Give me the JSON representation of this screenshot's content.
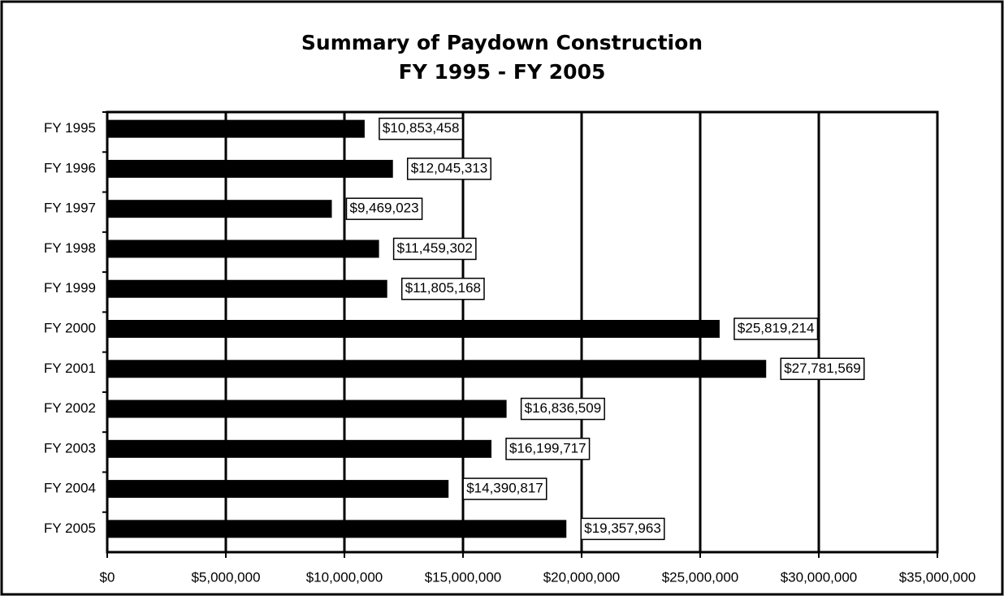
{
  "chart_data": {
    "type": "bar",
    "orientation": "horizontal",
    "title": "Summary of Paydown Construction",
    "subtitle": "FY 1995 - FY 2005",
    "categories": [
      "FY 1995",
      "FY 1996",
      "FY 1997",
      "FY 1998",
      "FY 1999",
      "FY 2000",
      "FY 2001",
      "FY 2002",
      "FY 2003",
      "FY 2004",
      "FY 2005"
    ],
    "values": [
      10853458,
      12045313,
      9469023,
      11459302,
      11805168,
      25819214,
      27781569,
      16836509,
      16199717,
      14390817,
      19357963
    ],
    "value_labels": [
      "$10,853,458",
      "$12,045,313",
      "$9,469,023",
      "$11,459,302",
      "$11,805,168",
      "$25,819,214",
      "$27,781,569",
      "$16,836,509",
      "$16,199,717",
      "$14,390,817",
      "$19,357,963"
    ],
    "color": "#000000",
    "xlim": [
      0,
      35000000
    ],
    "xticks": [
      {
        "value": 0,
        "label": "$0"
      },
      {
        "value": 5000000,
        "label": "$5,000,000"
      },
      {
        "value": 10000000,
        "label": "$10,000,000"
      },
      {
        "value": 15000000,
        "label": "$15,000,000"
      },
      {
        "value": 20000000,
        "label": "$20,000,000"
      },
      {
        "value": 25000000,
        "label": "$25,000,000"
      },
      {
        "value": 30000000,
        "label": "$30,000,000"
      },
      {
        "value": 35000000,
        "label": "$35,000,000"
      }
    ],
    "grid": true
  }
}
